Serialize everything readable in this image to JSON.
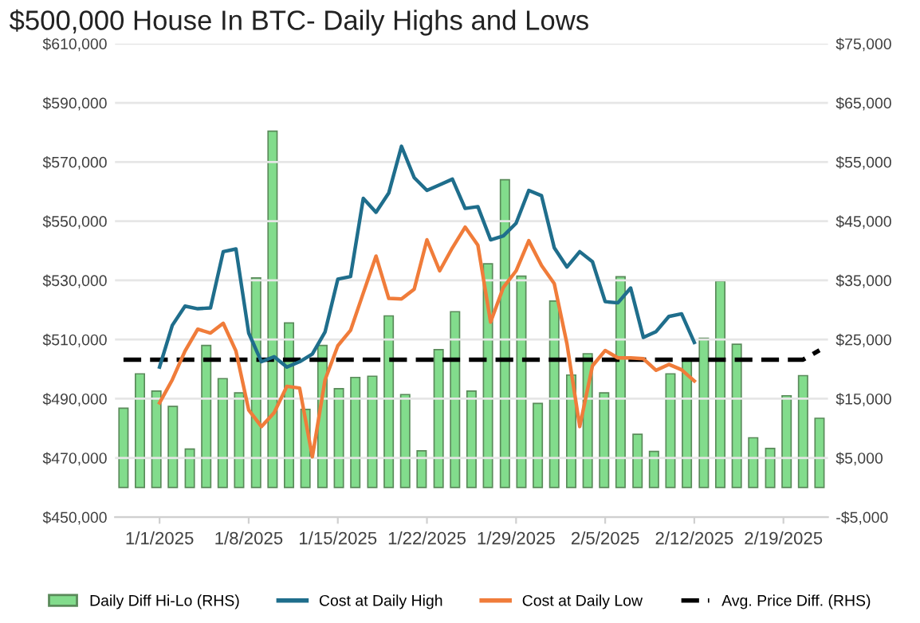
{
  "chart_data": {
    "type": "line",
    "title": "$500,000 House In BTC- Daily Highs and Lows",
    "series": [
      {
        "name": "Daily Diff Hi-Lo (RHS)",
        "type": "bar",
        "axis": "y2",
        "color": "#82dc8c",
        "x": [
          "2024-12-29T04:00",
          "2024-12-30T11:00",
          "2024-12-31T18:00",
          "2025-01-02T01:00",
          "2025-01-03T09:00",
          "2025-01-04T16:00",
          "2025-01-05T23:00",
          "2025-01-07T06:00",
          "2025-01-08T14:00",
          "2025-01-09T21:00",
          "2025-01-11T04:00",
          "2025-01-12T11:00",
          "2025-01-13T19:00",
          "2025-01-15T02:00",
          "2025-01-16T09:00",
          "2025-01-17T17:00",
          "2025-01-19T00:00",
          "2025-01-20T07:00",
          "2025-01-21T14:00",
          "2025-01-22T22:00",
          "2025-01-24T05:00",
          "2025-01-25T12:00",
          "2025-01-26T19:00",
          "2025-01-28T03:00",
          "2025-01-29T10:00",
          "2025-01-30T17:00",
          "2025-02-01T00:00",
          "2025-02-02T08:00",
          "2025-02-03T15:00",
          "2025-02-04T22:00",
          "2025-02-06T05:00",
          "2025-02-07T13:00",
          "2025-02-08T20:00",
          "2025-02-10T03:00",
          "2025-02-11T10:00",
          "2025-02-12T18:00",
          "2025-02-14T01:00",
          "2025-02-15T08:00",
          "2025-02-16T15:00",
          "2025-02-17T23:00",
          "2025-02-19T06:00",
          "2025-02-20T13:00",
          "2025-02-21T20:00"
        ],
        "values": [
          13400,
          19200,
          16300,
          13700,
          6500,
          24000,
          18400,
          16000,
          35400,
          60200,
          27800,
          13200,
          24000,
          16700,
          18600,
          18800,
          29000,
          15700,
          6200,
          23300,
          29700,
          16300,
          37800,
          52000,
          35700,
          14200,
          31500,
          19000,
          22600,
          16000,
          35600,
          9000,
          6100,
          19200,
          21500,
          25200,
          34900,
          24200,
          8400,
          6600,
          15500,
          18900,
          11700
        ]
      },
      {
        "name": "Cost at Daily High",
        "color": "#1f6e8c",
        "x": [
          "2025-01-01",
          "2025-01-02",
          "2025-01-03",
          "2025-01-04",
          "2025-01-05",
          "2025-01-06",
          "2025-01-07",
          "2025-01-08",
          "2025-01-09",
          "2025-01-10",
          "2025-01-11",
          "2025-01-12",
          "2025-01-13",
          "2025-01-14",
          "2025-01-15",
          "2025-01-16",
          "2025-01-17",
          "2025-01-18",
          "2025-01-19",
          "2025-01-20",
          "2025-01-21",
          "2025-01-22",
          "2025-01-23",
          "2025-01-24",
          "2025-01-25",
          "2025-01-26",
          "2025-01-27",
          "2025-01-28",
          "2025-01-29",
          "2025-01-30",
          "2025-01-31",
          "2025-02-01",
          "2025-02-02",
          "2025-02-03",
          "2025-02-04",
          "2025-02-05",
          "2025-02-06",
          "2025-02-07",
          "2025-02-08",
          "2025-02-09",
          "2025-02-10",
          "2025-02-11",
          "2025-02-12"
        ],
        "values": [
          500700,
          514800,
          521300,
          520400,
          520700,
          539700,
          540600,
          512200,
          502500,
          504200,
          500700,
          502500,
          505100,
          512600,
          530400,
          531300,
          557700,
          553000,
          559500,
          575300,
          564700,
          560400,
          562300,
          564200,
          554300,
          554900,
          543700,
          545000,
          549300,
          560400,
          558600,
          541000,
          534500,
          539700,
          536300,
          522800,
          522400,
          527400,
          510700,
          512700,
          517800,
          518700,
          509000
        ]
      },
      {
        "name": "Cost at Daily Low",
        "type": "line",
        "color": "#f07c3a",
        "x": [
          "2025-01-01",
          "2025-01-02",
          "2025-01-03",
          "2025-01-04",
          "2025-01-05",
          "2025-01-06",
          "2025-01-07",
          "2025-01-08",
          "2025-01-09",
          "2025-01-10",
          "2025-01-11",
          "2025-01-12",
          "2025-01-13",
          "2025-01-14",
          "2025-01-15",
          "2025-01-16",
          "2025-01-17",
          "2025-01-18",
          "2025-01-19",
          "2025-01-20",
          "2025-01-21",
          "2025-01-22",
          "2025-01-23",
          "2025-01-24",
          "2025-01-25",
          "2025-01-26",
          "2025-01-27",
          "2025-01-28",
          "2025-01-29",
          "2025-01-30",
          "2025-01-31",
          "2025-02-01",
          "2025-02-02",
          "2025-02-03",
          "2025-02-04",
          "2025-02-05",
          "2025-02-06",
          "2025-02-07",
          "2025-02-08",
          "2025-02-09",
          "2025-02-10",
          "2025-02-11",
          "2025-02-12"
        ],
        "values": [
          488600,
          496400,
          506100,
          513500,
          512200,
          515500,
          506100,
          486200,
          480600,
          485300,
          494200,
          493600,
          470400,
          496400,
          507900,
          513100,
          525700,
          538200,
          523900,
          523700,
          527000,
          543700,
          533200,
          541000,
          548000,
          541900,
          515900,
          527600,
          533200,
          543400,
          535000,
          528900,
          508500,
          480600,
          501100,
          506300,
          503800,
          503800,
          503500,
          499600,
          501600,
          499800,
          496000
        ]
      },
      {
        "name": "Avg. Price Diff. (RHS)",
        "type": "line",
        "axis": "y2",
        "line_style": "dashed",
        "color": "#000000",
        "x": [
          "2024-12-29T04:00",
          "2024-12-30T11:00",
          "2024-12-31T18:00",
          "2025-01-02T01:00",
          "2025-01-03T09:00",
          "2025-01-04T16:00",
          "2025-01-05T23:00",
          "2025-01-07T06:00",
          "2025-01-08T14:00",
          "2025-01-09T21:00",
          "2025-01-11T04:00",
          "2025-01-12T11:00",
          "2025-01-13T19:00",
          "2025-01-15T02:00",
          "2025-01-16T09:00",
          "2025-01-17T17:00",
          "2025-01-19T00:00",
          "2025-01-20T07:00",
          "2025-01-21T14:00",
          "2025-01-22T22:00",
          "2025-01-24T05:00",
          "2025-01-25T12:00",
          "2025-01-26T19:00",
          "2025-01-28T03:00",
          "2025-01-29T10:00",
          "2025-01-30T17:00",
          "2025-02-01T00:00",
          "2025-02-02T08:00",
          "2025-02-03T15:00",
          "2025-02-04T22:00",
          "2025-02-06T05:00",
          "2025-02-07T13:00",
          "2025-02-08T20:00",
          "2025-02-10T03:00",
          "2025-02-11T10:00",
          "2025-02-12T18:00",
          "2025-02-14T01:00",
          "2025-02-15T08:00",
          "2025-02-16T15:00",
          "2025-02-17T23:00",
          "2025-02-19T06:00",
          "2025-02-20T13:00",
          "2025-02-21T20:00"
        ],
        "values": [
          21600,
          21600,
          21600,
          21600,
          21600,
          21600,
          21600,
          21600,
          21600,
          21600,
          21600,
          21600,
          21600,
          21600,
          21600,
          21600,
          21600,
          21600,
          21600,
          21600,
          21600,
          21600,
          21600,
          21600,
          21600,
          21600,
          21600,
          21600,
          21600,
          21600,
          21600,
          21600,
          21600,
          21600,
          21600,
          21600,
          21600,
          21600,
          21600,
          21600,
          21600,
          21600,
          23200
        ]
      }
    ],
    "xlim": [
      "2024-12-28T12:00",
      "2025-02-22T12:00"
    ],
    "xticks": [
      {
        "value": "2025-01-01",
        "label": "1/1/2025"
      },
      {
        "value": "2025-01-08",
        "label": "1/8/2025"
      },
      {
        "value": "2025-01-15",
        "label": "1/15/2025"
      },
      {
        "value": "2025-01-22",
        "label": "1/22/2025"
      },
      {
        "value": "2025-01-29",
        "label": "1/29/2025"
      },
      {
        "value": "2025-02-05",
        "label": "2/5/2025"
      },
      {
        "value": "2025-02-12",
        "label": "2/12/2025"
      },
      {
        "value": "2025-02-19",
        "label": "2/19/2025"
      }
    ],
    "ylim": [
      450000,
      610000
    ],
    "yticks": [
      {
        "value": 450000,
        "label": "$450,000"
      },
      {
        "value": 470000,
        "label": "$470,000"
      },
      {
        "value": 490000,
        "label": "$490,000"
      },
      {
        "value": 510000,
        "label": "$510,000"
      },
      {
        "value": 530000,
        "label": "$530,000"
      },
      {
        "value": 550000,
        "label": "$550,000"
      },
      {
        "value": 570000,
        "label": "$570,000"
      },
      {
        "value": 590000,
        "label": "$590,000"
      },
      {
        "value": 610000,
        "label": "$610,000"
      }
    ],
    "y2lim": [
      -5000,
      75000
    ],
    "y2ticks": [
      {
        "value": -5000,
        "label": "-$5,000"
      },
      {
        "value": 5000,
        "label": "$5,000"
      },
      {
        "value": 15000,
        "label": "$15,000"
      },
      {
        "value": 25000,
        "label": "$25,000"
      },
      {
        "value": 35000,
        "label": "$35,000"
      },
      {
        "value": 45000,
        "label": "$45,000"
      },
      {
        "value": 55000,
        "label": "$55,000"
      },
      {
        "value": 65000,
        "label": "$65,000"
      },
      {
        "value": 75000,
        "label": "$75,000"
      }
    ],
    "grid": "y",
    "legend": "bottom",
    "marker": "none"
  }
}
